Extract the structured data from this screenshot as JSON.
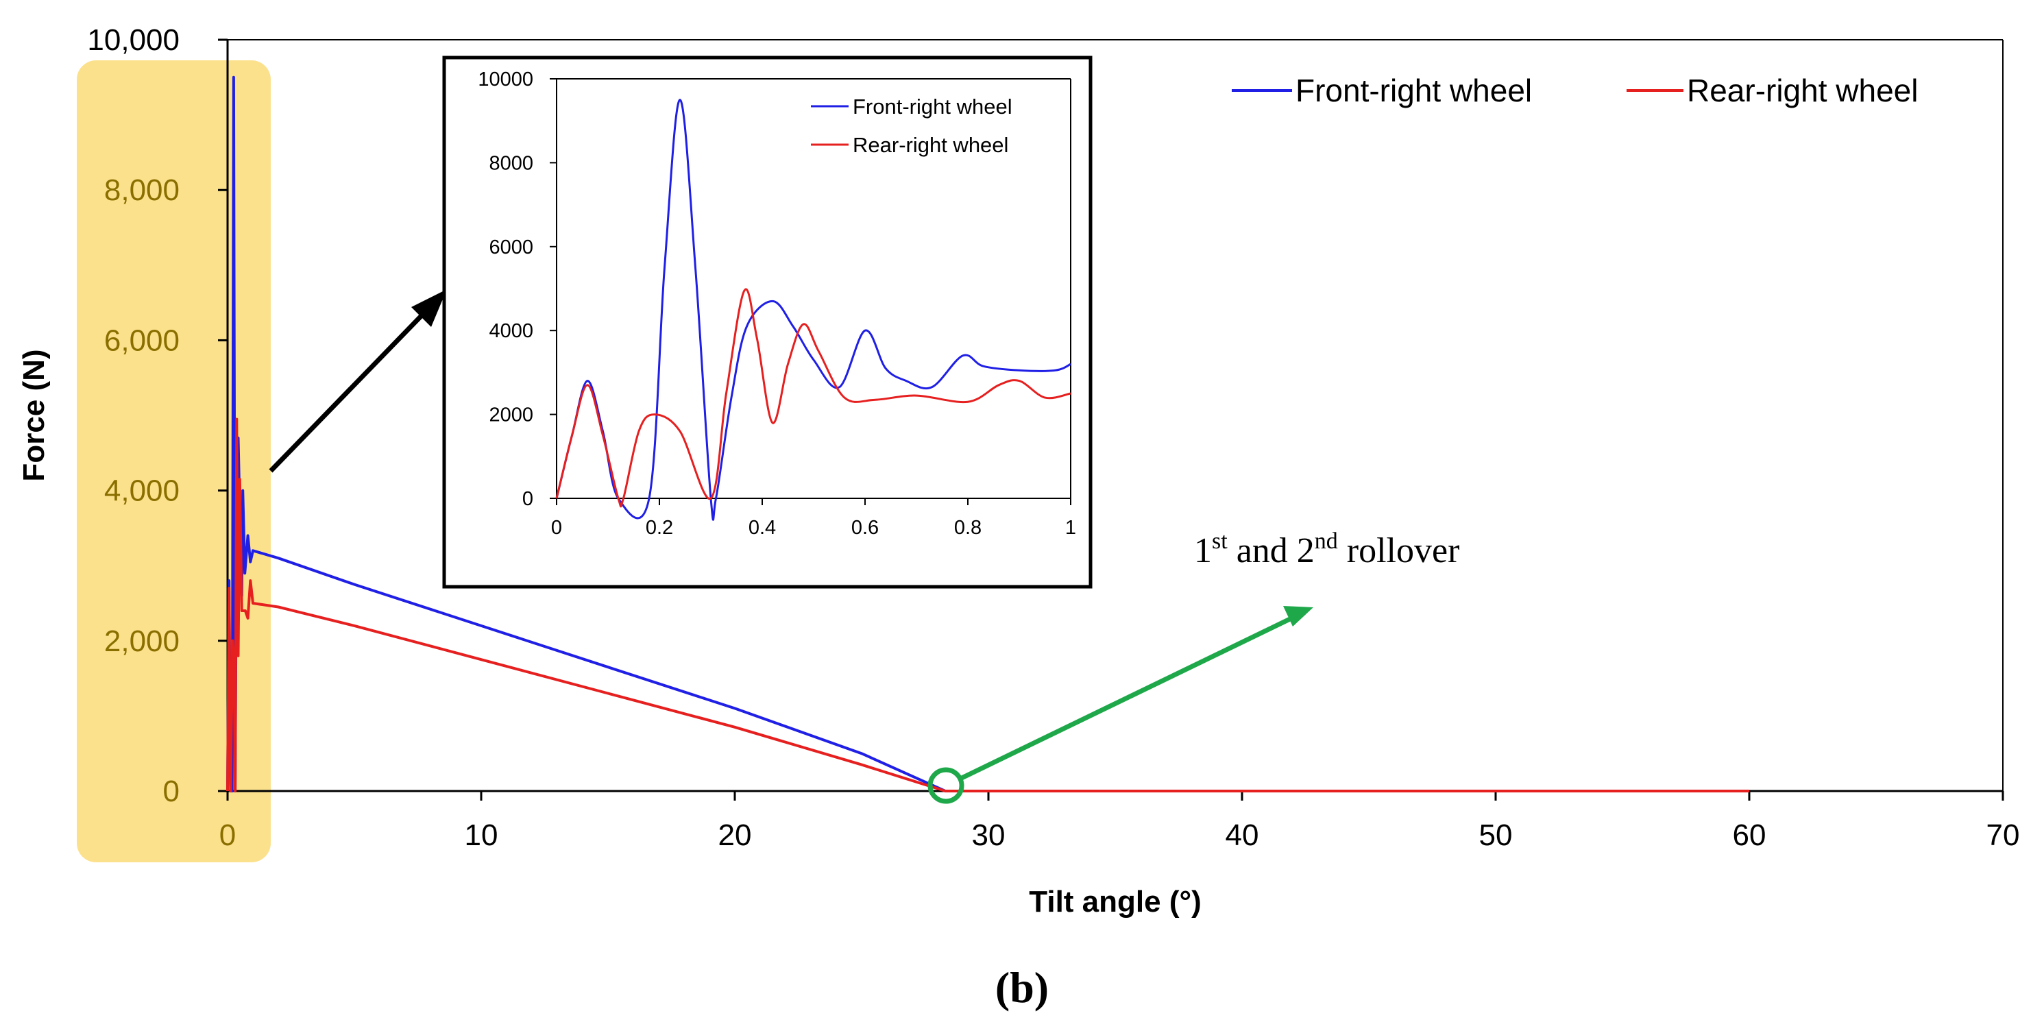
{
  "chart_data": [
    {
      "name": "main",
      "type": "line",
      "xlabel": "Tilt angle (°)",
      "ylabel": "Force (N)",
      "xlim": [
        0,
        70
      ],
      "ylim": [
        0,
        10000
      ],
      "x_ticks": [
        0,
        10,
        20,
        30,
        40,
        50,
        60,
        70
      ],
      "x_tick_labels": [
        "0",
        "10",
        "20",
        "30",
        "40",
        "50",
        "60",
        "70"
      ],
      "y_ticks": [
        0,
        2000,
        4000,
        6000,
        8000,
        10000
      ],
      "y_tick_labels": [
        "0",
        "2,000",
        "4,000",
        "6,000",
        "8,000",
        "10,000"
      ],
      "legend_position": "top-right",
      "series": [
        {
          "name": "Front-right wheel",
          "color": "#1f1fe6",
          "points": [
            [
              0,
              0
            ],
            [
              0.06,
              2800
            ],
            [
              0.12,
              0
            ],
            [
              0.18,
              0
            ],
            [
              0.24,
              9500
            ],
            [
              0.3,
              0
            ],
            [
              0.36,
              4000
            ],
            [
              0.42,
              4700
            ],
            [
              0.5,
              3400
            ],
            [
              0.56,
              2600
            ],
            [
              0.6,
              4000
            ],
            [
              0.68,
              2900
            ],
            [
              0.8,
              3400
            ],
            [
              0.9,
              3050
            ],
            [
              1,
              3200
            ],
            [
              2,
              3100
            ],
            [
              5,
              2750
            ],
            [
              10,
              2200
            ],
            [
              15,
              1650
            ],
            [
              20,
              1100
            ],
            [
              25,
              500
            ],
            [
              28.3,
              0
            ],
            [
              60,
              0
            ]
          ]
        },
        {
          "name": "Rear-right wheel",
          "color": "#e61f1f",
          "points": [
            [
              0,
              0
            ],
            [
              0.06,
              2700
            ],
            [
              0.12,
              0
            ],
            [
              0.2,
              2000
            ],
            [
              0.26,
              1600
            ],
            [
              0.3,
              0
            ],
            [
              0.36,
              4950
            ],
            [
              0.42,
              1800
            ],
            [
              0.48,
              4150
            ],
            [
              0.56,
              2400
            ],
            [
              0.7,
              2400
            ],
            [
              0.8,
              2300
            ],
            [
              0.9,
              2800
            ],
            [
              1,
              2500
            ],
            [
              2,
              2450
            ],
            [
              5,
              2200
            ],
            [
              10,
              1750
            ],
            [
              15,
              1300
            ],
            [
              20,
              850
            ],
            [
              25,
              350
            ],
            [
              28.3,
              0
            ],
            [
              60,
              0
            ]
          ]
        }
      ],
      "highlight_region": {
        "x": [
          0,
          1.6
        ],
        "color": "#fce18d"
      },
      "annotations": [
        {
          "id": "rollover",
          "text_main": "1",
          "text_sup1": "st",
          "text_mid": " and 2",
          "text_sup2": "nd",
          "text_end": " rollover",
          "point": [
            28.3,
            0
          ],
          "color": "#1ea84a"
        }
      ]
    },
    {
      "name": "inset",
      "type": "line",
      "xlim": [
        0,
        1
      ],
      "ylim": [
        0,
        10000
      ],
      "x_ticks": [
        0,
        0.2,
        0.4,
        0.6,
        0.8,
        1
      ],
      "x_tick_labels": [
        "0",
        "0.2",
        "0.4",
        "0.6",
        "0.8",
        "1"
      ],
      "y_ticks": [
        0,
        2000,
        4000,
        6000,
        8000,
        10000
      ],
      "y_tick_labels": [
        "0",
        "2000",
        "4000",
        "6000",
        "8000",
        "10000"
      ],
      "legend_position": "top-right",
      "series": [
        {
          "name": "Front-right wheel",
          "color": "#1f1fe6",
          "points": [
            [
              0,
              0
            ],
            [
              0.03,
              1500
            ],
            [
              0.06,
              2800
            ],
            [
              0.09,
              1600
            ],
            [
              0.12,
              0
            ],
            [
              0.18,
              0
            ],
            [
              0.21,
              5500
            ],
            [
              0.24,
              9500
            ],
            [
              0.27,
              5500
            ],
            [
              0.3,
              0
            ],
            [
              0.31,
              0
            ],
            [
              0.34,
              2400
            ],
            [
              0.37,
              4100
            ],
            [
              0.42,
              4700
            ],
            [
              0.46,
              4100
            ],
            [
              0.5,
              3300
            ],
            [
              0.55,
              2650
            ],
            [
              0.6,
              4000
            ],
            [
              0.64,
              3100
            ],
            [
              0.68,
              2800
            ],
            [
              0.73,
              2650
            ],
            [
              0.79,
              3400
            ],
            [
              0.83,
              3150
            ],
            [
              0.9,
              3050
            ],
            [
              0.97,
              3050
            ],
            [
              1,
              3200
            ]
          ]
        },
        {
          "name": "Rear-right wheel",
          "color": "#e61f1f",
          "points": [
            [
              0,
              0
            ],
            [
              0.03,
              1500
            ],
            [
              0.06,
              2700
            ],
            [
              0.09,
              1500
            ],
            [
              0.12,
              0
            ],
            [
              0.13,
              0
            ],
            [
              0.16,
              1600
            ],
            [
              0.19,
              2000
            ],
            [
              0.24,
              1600
            ],
            [
              0.3,
              0
            ],
            [
              0.33,
              2500
            ],
            [
              0.365,
              4950
            ],
            [
              0.39,
              3800
            ],
            [
              0.42,
              1800
            ],
            [
              0.45,
              3200
            ],
            [
              0.48,
              4150
            ],
            [
              0.51,
              3500
            ],
            [
              0.56,
              2400
            ],
            [
              0.62,
              2350
            ],
            [
              0.7,
              2450
            ],
            [
              0.8,
              2300
            ],
            [
              0.86,
              2700
            ],
            [
              0.9,
              2800
            ],
            [
              0.95,
              2400
            ],
            [
              1,
              2500
            ]
          ]
        }
      ]
    }
  ],
  "panel_label": "(b)"
}
